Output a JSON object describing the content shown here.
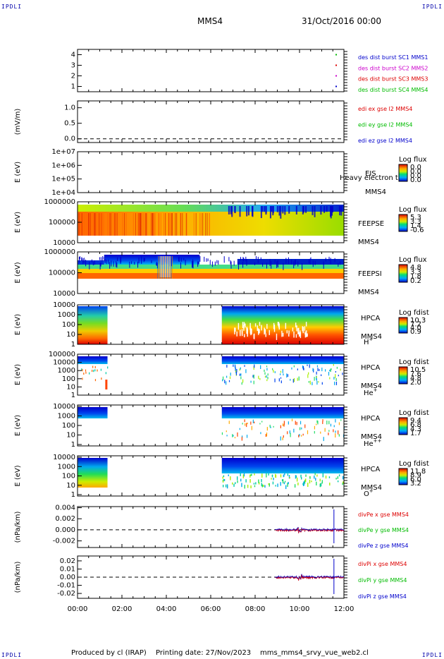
{
  "corner_labels": {
    "tl": "IPDLI",
    "tr": "IPDLI",
    "bl": "IPDLI",
    "br": "IPDLI"
  },
  "header": {
    "spacecraft": "MMS4",
    "date": "31/Oct/2016 00:00"
  },
  "footer": {
    "produced": "Produced by cl (IRAP)",
    "printing": "Printing date: 27/Nov/2023",
    "script": "mms_mms4_srvy_vue_web2.cl"
  },
  "xaxis": {
    "ticks": [
      "00:00",
      "02:00",
      "04:00",
      "06:00",
      "08:00",
      "10:00",
      "12:00"
    ],
    "range_hours": [
      0,
      12
    ]
  },
  "colors": {
    "red": "#dd0000",
    "magenta": "#cc00cc",
    "green": "#00bb00",
    "blue": "#0000cc"
  },
  "chart_data": [
    {
      "type": "scatter",
      "panel": "burst",
      "yticks": [
        "1",
        "2",
        "3",
        "4"
      ],
      "ylim": [
        0.5,
        4.5
      ],
      "legend": [
        {
          "text": "des dist burst SC1 MMS1",
          "color": "#0000cc"
        },
        {
          "text": "des dist burst SC2 MMS2",
          "color": "#cc00cc"
        },
        {
          "text": "des dist burst SC3 MMS3",
          "color": "#dd0000"
        },
        {
          "text": "des dist burst SC4 MMS4",
          "color": "#00bb00"
        }
      ],
      "points": [
        {
          "x": 11.62,
          "y": 4,
          "color": "#00bb00"
        },
        {
          "x": 11.62,
          "y": 3,
          "color": "#dd0000"
        },
        {
          "x": 11.62,
          "y": 2,
          "color": "#cc00cc"
        },
        {
          "x": 11.62,
          "y": 1,
          "color": "#0000cc"
        }
      ]
    },
    {
      "type": "line",
      "panel": "edi",
      "ylabel": "(mV/m)",
      "yticks": [
        "0.0",
        "0.5",
        "1.0"
      ],
      "ylim": [
        -0.12,
        1.22
      ],
      "legend": [
        {
          "text": "edi ex gse l2 MMS4",
          "color": "#dd0000"
        },
        {
          "text": "edi ey gse l2 MMS4",
          "color": "#00bb00"
        },
        {
          "text": "edi ez gse l2 MMS4",
          "color": "#0000cc"
        }
      ]
    },
    {
      "type": "heatmap",
      "panel": "eis",
      "ylabel": "E (eV)",
      "yticks": [
        "1e+04",
        "1e+05",
        "1e+06",
        "1e+07"
      ],
      "right_labels": [
        "EIS",
        "MMS4"
      ],
      "overflow_label": "Heavy electron t",
      "colorbar": {
        "title": "Log flux",
        "ticks": [
          "0.0",
          "0.0",
          "0.0",
          "0.0"
        ]
      }
    },
    {
      "type": "heatmap",
      "panel": "feeps_e",
      "ylabel": "E (eV)",
      "yticks": [
        "10000",
        "100000",
        "1000000"
      ],
      "right_labels": [
        "FEEPSE",
        "MMS4"
      ],
      "colorbar": {
        "title": "Log flux",
        "ticks": [
          "5.3",
          "3.3",
          "1.4",
          "-0.6"
        ]
      }
    },
    {
      "type": "heatmap",
      "panel": "feeps_i",
      "ylabel": "E (eV)",
      "yticks": [
        "10000",
        "100000",
        "1000000"
      ],
      "right_labels": [
        "FEEPSI",
        "MMS4"
      ],
      "colorbar": {
        "title": "Log flux",
        "ticks": [
          "4.8",
          "3.3",
          "1.8",
          "0.2"
        ]
      }
    },
    {
      "type": "heatmap",
      "panel": "hpca_h",
      "ylabel": "E (eV)",
      "yticks": [
        "1",
        "10",
        "100",
        "1000",
        "10000"
      ],
      "right_labels": [
        "HPCA",
        "MMS4"
      ],
      "species": "H",
      "charge": "+",
      "colorbar": {
        "title": "Log fdist",
        "ticks": [
          "10.3",
          "7.2",
          "4.0",
          "0.9"
        ]
      }
    },
    {
      "type": "heatmap",
      "panel": "hpca_he1",
      "ylabel": "E (eV)",
      "yticks": [
        "1",
        "10",
        "100",
        "1000",
        "10000",
        "100000"
      ],
      "right_labels": [
        "HPCA",
        "MMS4"
      ],
      "species": "He",
      "charge": "+",
      "colorbar": {
        "title": "Log fdist",
        "ticks": [
          "10.5",
          "7.6",
          "4.8",
          "2.0"
        ]
      }
    },
    {
      "type": "heatmap",
      "panel": "hpca_he2",
      "ylabel": "E (eV)",
      "yticks": [
        "1",
        "10",
        "100",
        "1000",
        "10000"
      ],
      "right_labels": [
        "HPCA",
        "MMS4"
      ],
      "species": "He",
      "charge": "++",
      "colorbar": {
        "title": "Log fdist",
        "ticks": [
          "9.4",
          "6.8",
          "4.3",
          "1.7"
        ]
      }
    },
    {
      "type": "heatmap",
      "panel": "hpca_o",
      "ylabel": "E (eV)",
      "yticks": [
        "1",
        "10",
        "100",
        "1000",
        "10000"
      ],
      "right_labels": [
        "HPCA",
        "MMS4"
      ],
      "species": "O",
      "charge": "+",
      "colorbar": {
        "title": "Log fdist",
        "ticks": [
          "11.8",
          "8.9",
          "6.0",
          "3.2"
        ]
      }
    },
    {
      "type": "line",
      "panel": "divpe",
      "ylabel": "(nPa/km)",
      "yticks": [
        "-0.002",
        "0.000",
        "0.002",
        "0.004"
      ],
      "ylim": [
        -0.0032,
        0.0042
      ],
      "legend": [
        {
          "text": "divPe x gse MMS4",
          "color": "#dd0000"
        },
        {
          "text": "divPe y gse MMS4",
          "color": "#00bb00"
        },
        {
          "text": "divPe z gse MMS4",
          "color": "#0000cc"
        }
      ]
    },
    {
      "type": "line",
      "panel": "divpi",
      "ylabel": "(nPa/km)",
      "yticks": [
        "-0.02",
        "-0.01",
        "0.00",
        "0.01",
        "0.02"
      ],
      "ylim": [
        -0.026,
        0.026
      ],
      "legend": [
        {
          "text": "divPi x gse MMS4",
          "color": "#dd0000"
        },
        {
          "text": "divPi y gse MMS4",
          "color": "#00bb00"
        },
        {
          "text": "divPi z gse MMS4",
          "color": "#0000cc"
        }
      ]
    }
  ]
}
